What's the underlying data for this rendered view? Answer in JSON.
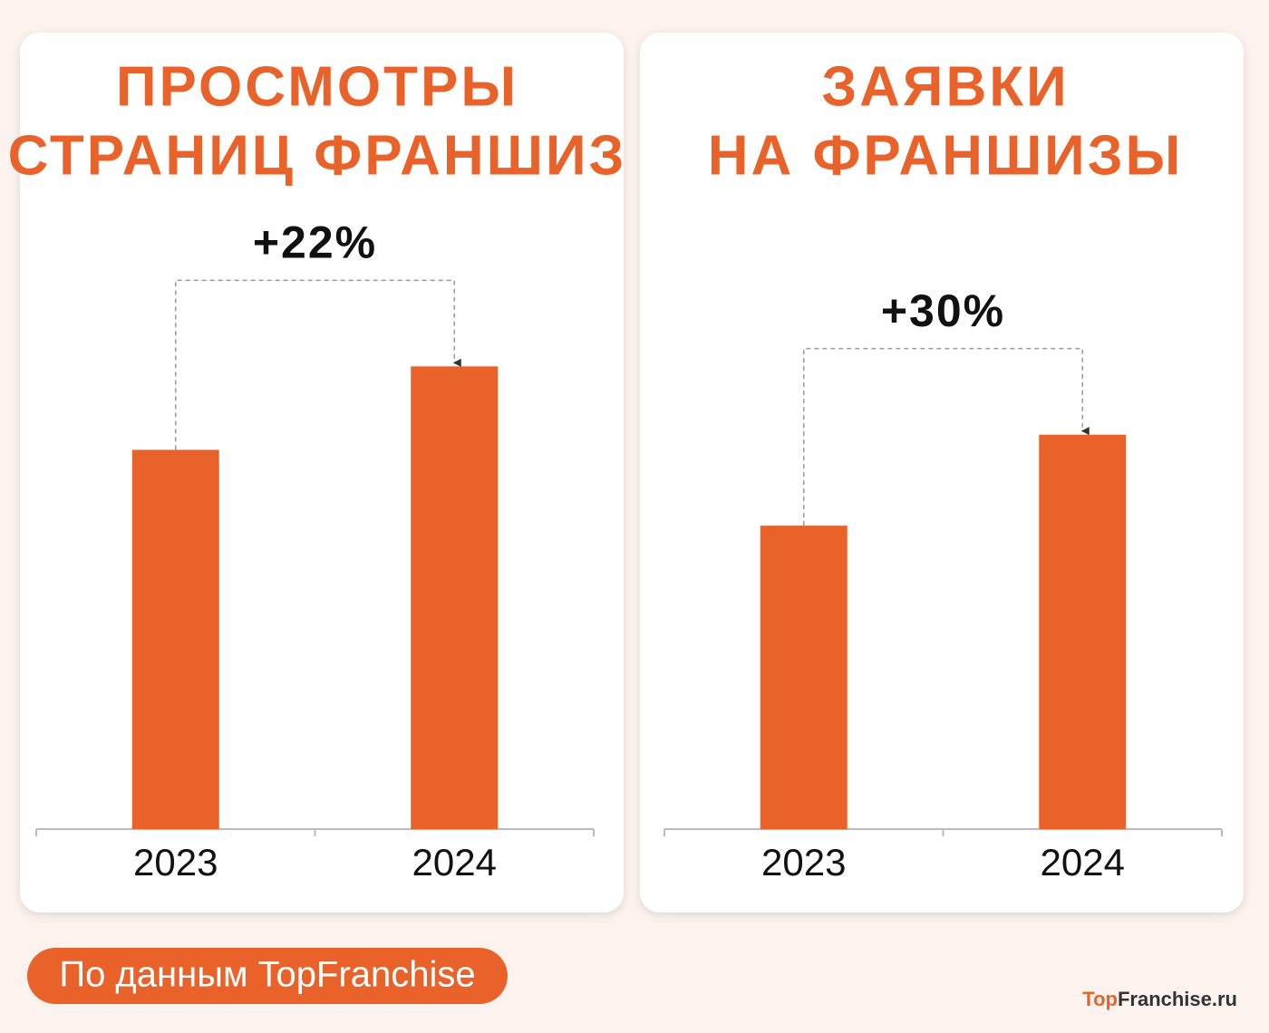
{
  "chart_data": [
    {
      "type": "bar",
      "title": [
        "ПРОСМОТРЫ",
        "СТРАНИЦ ФРАНШИЗ"
      ],
      "categories": [
        "2023",
        "2024"
      ],
      "values": [
        100,
        122
      ],
      "color": "#e9622a",
      "ylim": [
        0,
        140
      ],
      "annotation": "+22%"
    },
    {
      "type": "bar",
      "title": [
        "ЗАЯВКИ",
        "НА ФРАНШИЗЫ"
      ],
      "categories": [
        "2023",
        "2024"
      ],
      "values": [
        100,
        130
      ],
      "color": "#e9622a",
      "ylim": [
        0,
        175
      ],
      "annotation": "+30%"
    }
  ],
  "footer": {
    "source": "По данным TopFranchise",
    "logo_prefix": "Top",
    "logo_rest": "Franchise.ru"
  }
}
